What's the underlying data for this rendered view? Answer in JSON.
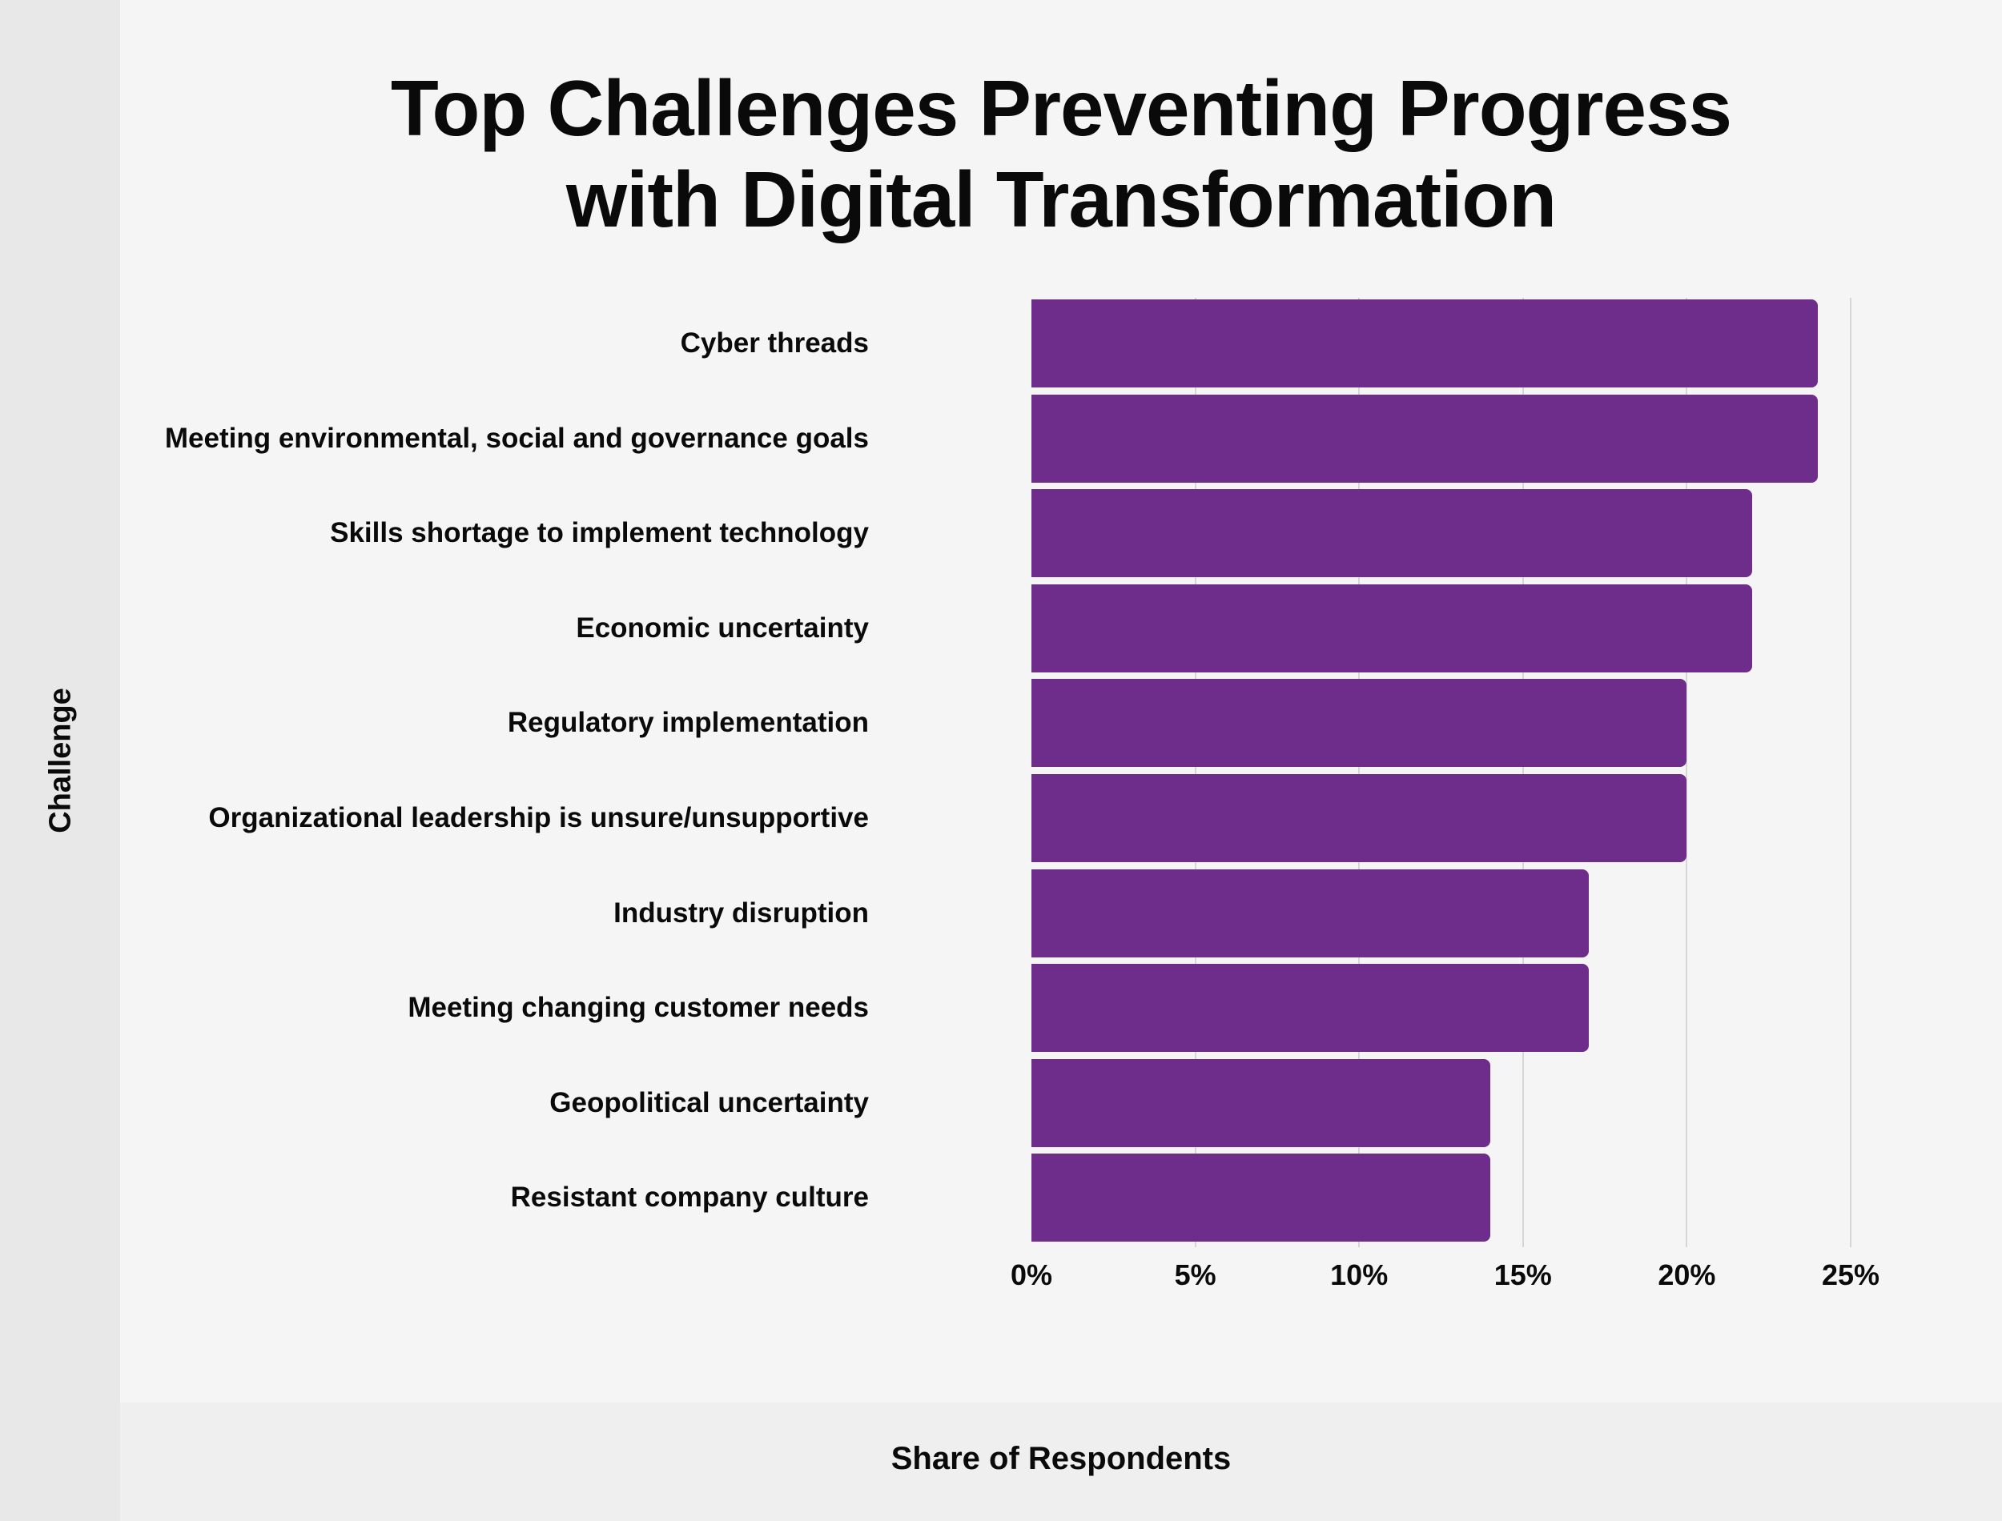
{
  "chart_data": {
    "type": "bar",
    "orientation": "horizontal",
    "title": "Top Challenges Preventing Progress with Digital Transformation",
    "title_lines": [
      "Top Challenges Preventing Progress",
      "with Digital Transformation"
    ],
    "xlabel": "Share of Respondents",
    "ylabel": "Challenge",
    "categories": [
      "Cyber threads",
      "Meeting environmental, social and governance goals",
      "Skills shortage to implement technology",
      "Economic uncertainty",
      "Regulatory implementation",
      "Organizational leadership is unsure/unsupportive",
      "Industry disruption",
      "Meeting changing customer needs",
      "Geopolitical uncertainty",
      "Resistant company culture"
    ],
    "values": [
      24,
      24,
      22,
      22,
      20,
      20,
      17,
      17,
      14,
      14
    ],
    "unit": "%",
    "xlim": [
      0,
      25
    ],
    "xticks": [
      "0%",
      "5%",
      "10%",
      "15%",
      "20%",
      "25%"
    ],
    "grid": true,
    "legend": null,
    "bar_color": "#6e2c8b"
  }
}
